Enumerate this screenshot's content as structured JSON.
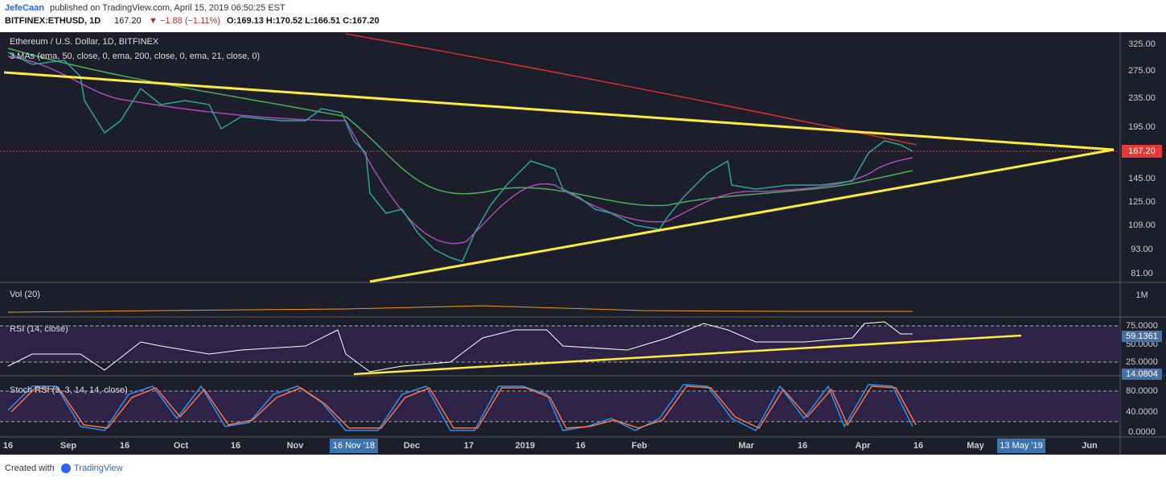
{
  "header": {
    "author": "JefeCaan",
    "published": "published on TradingView.com, April 15, 2019 06:50:25 EST",
    "symbol": "BITFINEX:ETHUSD, 1D",
    "quote": "167.20",
    "change": "▼ −1.88 (−1.11%)",
    "ohlc": "O:169.13 H:170.52 L:166.51 C:167.20"
  },
  "panes": {
    "main": "Ethereum / U.S. Dollar, 1D, BITFINEX",
    "mas": "3 MAs (ema, 50, close, 0, ema, 200, close, 0, ema, 21, close, 0)",
    "volume": "Vol (20)",
    "rsi": "RSI (14, close)",
    "stoch": "Stoch RSI (3, 3, 14, 14, close)"
  },
  "price_axis": [
    "325.00",
    "275.00",
    "235.00",
    "195.00",
    "145.00",
    "125.00",
    "109.00",
    "93.00",
    "81.00"
  ],
  "price_current": "167.20",
  "volume_axis": [
    "1M"
  ],
  "rsi_axis": [
    "75.0000",
    "50.0000",
    "25.0000"
  ],
  "rsi_boxes": [
    "59.1361",
    "14.0804"
  ],
  "stoch_axis": [
    "80.0000",
    "40.0000",
    "0.0000"
  ],
  "time_axis": [
    "16",
    "Sep",
    "16",
    "Oct",
    "16",
    "Nov",
    "Dec",
    "17",
    "2019",
    "16",
    "Feb",
    "Mar",
    "16",
    "Apr",
    "16",
    "May",
    "Jun"
  ],
  "time_boxes": [
    "16 Nov '18",
    "13 May '19"
  ],
  "footer": {
    "created": "Created with",
    "brand": "TradingView"
  }
}
